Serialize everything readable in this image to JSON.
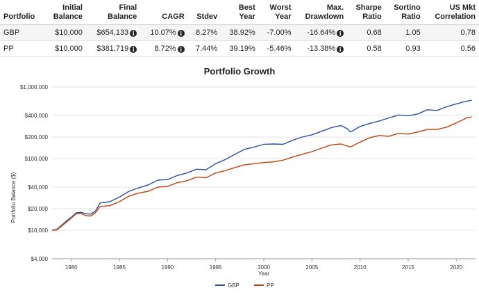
{
  "table": {
    "headers": [
      {
        "lines": [
          "Portfolio"
        ],
        "align": "left"
      },
      {
        "lines": [
          "Initial",
          "Balance"
        ],
        "align": "right"
      },
      {
        "lines": [
          "Final",
          "Balance"
        ],
        "align": "right"
      },
      {
        "lines": [
          "CAGR"
        ],
        "align": "right"
      },
      {
        "lines": [
          "Stdev"
        ],
        "align": "right"
      },
      {
        "lines": [
          "Best",
          "Year"
        ],
        "align": "right"
      },
      {
        "lines": [
          "Worst",
          "Year"
        ],
        "align": "right"
      },
      {
        "lines": [
          "Max.",
          "Drawdown"
        ],
        "align": "right"
      },
      {
        "lines": [
          "Sharpe",
          "Ratio"
        ],
        "align": "right"
      },
      {
        "lines": [
          "Sortino",
          "Ratio"
        ],
        "align": "right"
      },
      {
        "lines": [
          "US Mkt",
          "Correlation"
        ],
        "align": "right"
      }
    ],
    "rows": [
      {
        "portfolio": "GBP",
        "initial_balance": "$10,000",
        "final_balance": "$654,133",
        "cagr": "10.07%",
        "stdev": "8.27%",
        "best_year": "38.92%",
        "worst_year": "-7.00%",
        "max_drawdown": "-16.64%",
        "sharpe_ratio": "0.68",
        "sortino_ratio": "1.05",
        "us_mkt_correlation": "0.78"
      },
      {
        "portfolio": "PP",
        "initial_balance": "$10,000",
        "final_balance": "$381,719",
        "cagr": "8.72%",
        "stdev": "7.44%",
        "best_year": "39.19%",
        "worst_year": "-5.46%",
        "max_drawdown": "-13.38%",
        "sharpe_ratio": "0.58",
        "sortino_ratio": "0.93",
        "us_mkt_correlation": "0.56"
      }
    ],
    "info_icon": "info-circle-icon",
    "info_icon_glyph": "i"
  },
  "chart_data": {
    "type": "line",
    "title": "Portfolio Growth",
    "xlabel": "Year",
    "ylabel": "Portfolio Balance ($)",
    "y_scale": "log",
    "xlim": [
      1978.0,
      2022.0
    ],
    "ylim": [
      4000,
      1000000
    ],
    "x_ticks": [
      1980,
      1985,
      1990,
      1995,
      2000,
      2005,
      2010,
      2015,
      2020
    ],
    "y_ticks": [
      {
        "value": 4000,
        "label": "$4,000"
      },
      {
        "value": 10000,
        "label": "$10,000"
      },
      {
        "value": 20000,
        "label": "$20,000"
      },
      {
        "value": 40000,
        "label": "$40,000"
      },
      {
        "value": 100000,
        "label": "$100,000"
      },
      {
        "value": 200000,
        "label": "$200,000"
      },
      {
        "value": 400000,
        "label": "$400,000"
      },
      {
        "value": 1000000,
        "label": "$1,000,000"
      }
    ],
    "grid": "horizontal",
    "legend": "bottom-center",
    "series": [
      {
        "name": "GBP",
        "color": "#2e4ea3",
        "points": [
          [
            1978.0,
            10000
          ],
          [
            1978.5,
            10300
          ],
          [
            1979.0,
            11800
          ],
          [
            1979.5,
            13500
          ],
          [
            1980.0,
            15200
          ],
          [
            1980.5,
            17500
          ],
          [
            1981.0,
            17800
          ],
          [
            1981.5,
            17000
          ],
          [
            1982.0,
            16800
          ],
          [
            1982.5,
            18500
          ],
          [
            1983.0,
            24000
          ],
          [
            1984.0,
            25000
          ],
          [
            1985.0,
            29000
          ],
          [
            1986.0,
            35000
          ],
          [
            1987.0,
            39000
          ],
          [
            1988.0,
            43000
          ],
          [
            1989.0,
            50000
          ],
          [
            1990.0,
            51000
          ],
          [
            1991.0,
            58000
          ],
          [
            1992.0,
            63000
          ],
          [
            1993.0,
            71000
          ],
          [
            1994.0,
            70000
          ],
          [
            1995.0,
            85000
          ],
          [
            1996.0,
            97000
          ],
          [
            1997.0,
            115000
          ],
          [
            1998.0,
            135000
          ],
          [
            1999.0,
            145000
          ],
          [
            2000.0,
            158000
          ],
          [
            2001.0,
            160000
          ],
          [
            2002.0,
            158000
          ],
          [
            2003.0,
            180000
          ],
          [
            2004.0,
            200000
          ],
          [
            2005.0,
            215000
          ],
          [
            2006.0,
            240000
          ],
          [
            2007.0,
            270000
          ],
          [
            2008.0,
            290000
          ],
          [
            2008.7,
            260000
          ],
          [
            2009.0,
            235000
          ],
          [
            2010.0,
            280000
          ],
          [
            2011.0,
            310000
          ],
          [
            2012.0,
            335000
          ],
          [
            2013.0,
            370000
          ],
          [
            2014.0,
            405000
          ],
          [
            2015.0,
            395000
          ],
          [
            2016.0,
            420000
          ],
          [
            2017.0,
            480000
          ],
          [
            2018.0,
            470000
          ],
          [
            2019.0,
            530000
          ],
          [
            2020.0,
            580000
          ],
          [
            2021.0,
            630000
          ],
          [
            2021.6,
            654133
          ]
        ]
      },
      {
        "name": "PP",
        "color": "#c1410e",
        "points": [
          [
            1978.0,
            10000
          ],
          [
            1978.5,
            10100
          ],
          [
            1979.0,
            11500
          ],
          [
            1979.5,
            13000
          ],
          [
            1980.0,
            14800
          ],
          [
            1980.5,
            17000
          ],
          [
            1981.0,
            17200
          ],
          [
            1981.5,
            16000
          ],
          [
            1982.0,
            15800
          ],
          [
            1982.5,
            17500
          ],
          [
            1983.0,
            21500
          ],
          [
            1984.0,
            22000
          ],
          [
            1985.0,
            25000
          ],
          [
            1986.0,
            30000
          ],
          [
            1987.0,
            33000
          ],
          [
            1988.0,
            35000
          ],
          [
            1989.0,
            40000
          ],
          [
            1990.0,
            41000
          ],
          [
            1991.0,
            46000
          ],
          [
            1992.0,
            49000
          ],
          [
            1993.0,
            55000
          ],
          [
            1994.0,
            54000
          ],
          [
            1995.0,
            63000
          ],
          [
            1996.0,
            68000
          ],
          [
            1997.0,
            75000
          ],
          [
            1998.0,
            82000
          ],
          [
            1999.0,
            85000
          ],
          [
            2000.0,
            88000
          ],
          [
            2001.0,
            90000
          ],
          [
            2002.0,
            95000
          ],
          [
            2003.0,
            105000
          ],
          [
            2004.0,
            115000
          ],
          [
            2005.0,
            125000
          ],
          [
            2006.0,
            140000
          ],
          [
            2007.0,
            155000
          ],
          [
            2008.0,
            160000
          ],
          [
            2008.7,
            150000
          ],
          [
            2009.0,
            145000
          ],
          [
            2010.0,
            170000
          ],
          [
            2011.0,
            195000
          ],
          [
            2012.0,
            210000
          ],
          [
            2013.0,
            205000
          ],
          [
            2014.0,
            225000
          ],
          [
            2015.0,
            220000
          ],
          [
            2016.0,
            235000
          ],
          [
            2017.0,
            255000
          ],
          [
            2018.0,
            255000
          ],
          [
            2019.0,
            275000
          ],
          [
            2020.0,
            315000
          ],
          [
            2021.0,
            365000
          ],
          [
            2021.6,
            381719
          ]
        ]
      }
    ]
  }
}
